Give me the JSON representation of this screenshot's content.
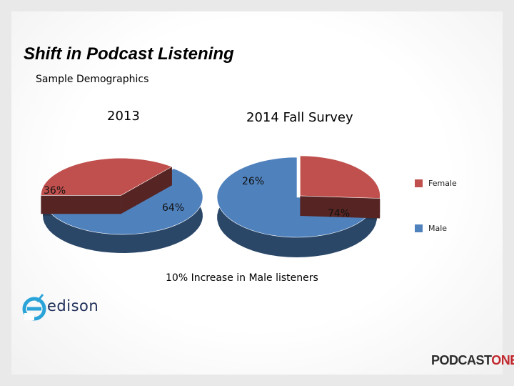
{
  "slide": {
    "title": "Shift in Podcast Listening",
    "subtitle": "Sample Demographics",
    "caption": "10% Increase in Male listeners"
  },
  "legend": [
    {
      "label": "Female",
      "color": "#c0504d"
    },
    {
      "label": "Male",
      "color": "#4f81bd"
    }
  ],
  "chart_data": [
    {
      "type": "pie",
      "title": "2013",
      "categories": [
        "Female",
        "Male"
      ],
      "values": [
        36,
        64
      ],
      "labels": [
        "36%",
        "64%"
      ],
      "colors": [
        "#c0504d",
        "#4f81bd"
      ],
      "style": "3d"
    },
    {
      "type": "pie",
      "title": "2014 Fall Survey",
      "categories": [
        "Female",
        "Male"
      ],
      "values": [
        26,
        74
      ],
      "labels": [
        "26%",
        "74%"
      ],
      "colors": [
        "#c0504d",
        "#4f81bd"
      ],
      "style": "3d"
    }
  ],
  "logos": {
    "edison": {
      "text": "edison",
      "icon": "edison-e-icon"
    },
    "podcastone": {
      "text_main": "PODCAST",
      "text_accent": "ONE",
      "accent_color": "#c1272d"
    }
  }
}
